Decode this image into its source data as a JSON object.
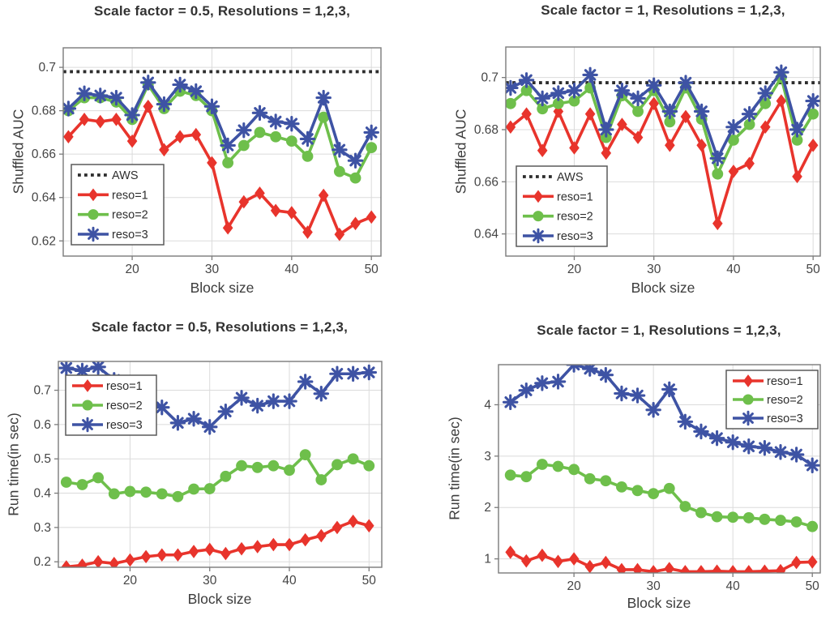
{
  "page": {
    "background": "#ffffff"
  },
  "figure": {
    "rows": 2,
    "cols": 2,
    "accent_colors": {
      "reso1": "#e8342c",
      "reso2": "#6ebf4b",
      "reso3": "#3e53a4",
      "aws": "#2d2d2d"
    },
    "grid_color": "#dbdbdb",
    "spine_color": "#7b7b7b",
    "tick_text_color": "#454545"
  },
  "chart_data": [
    {
      "type": "line",
      "title": "Scale factor = 0.5, Resolutions = 1,2,3,",
      "xlabel": "Block size",
      "ylabel": "Shuffled AUC",
      "x": [
        12,
        14,
        16,
        18,
        20,
        22,
        24,
        26,
        28,
        30,
        32,
        34,
        36,
        38,
        40,
        42,
        44,
        46,
        48,
        50
      ],
      "xlim": [
        11.35,
        51.2
      ],
      "ylim": [
        0.613,
        0.709
      ],
      "xticks": [
        20,
        30,
        40,
        50
      ],
      "yticks": [
        0.62,
        0.64,
        0.66,
        0.68,
        0.7
      ],
      "grid": true,
      "legend_position": "southwest",
      "aws": {
        "label": "AWS",
        "value": 0.698,
        "style": "dotted"
      },
      "series": [
        {
          "name": "reso=1",
          "color": "#e8342c",
          "marker": "diamond",
          "values": [
            0.668,
            0.676,
            0.675,
            0.676,
            0.666,
            0.682,
            0.662,
            0.668,
            0.669,
            0.656,
            0.626,
            0.638,
            0.642,
            0.634,
            0.633,
            0.624,
            0.641,
            0.623,
            0.628,
            0.631
          ]
        },
        {
          "name": "reso=2",
          "color": "#6ebf4b",
          "marker": "circle",
          "values": [
            0.68,
            0.686,
            0.686,
            0.684,
            0.676,
            0.692,
            0.681,
            0.689,
            0.687,
            0.68,
            0.656,
            0.664,
            0.67,
            0.668,
            0.666,
            0.659,
            0.677,
            0.652,
            0.649,
            0.663
          ]
        },
        {
          "name": "reso=3",
          "color": "#3e53a4",
          "marker": "asterisk",
          "values": [
            0.681,
            0.688,
            0.687,
            0.686,
            0.678,
            0.693,
            0.683,
            0.692,
            0.689,
            0.682,
            0.664,
            0.671,
            0.679,
            0.675,
            0.674,
            0.667,
            0.686,
            0.662,
            0.657,
            0.67
          ]
        }
      ]
    },
    {
      "type": "line",
      "title": "Scale factor = 1, Resolutions = 1,2,3,",
      "xlabel": "Block size",
      "ylabel": "Shuffled AUC",
      "x": [
        12,
        14,
        16,
        18,
        20,
        22,
        24,
        26,
        28,
        30,
        32,
        34,
        36,
        38,
        40,
        42,
        44,
        46,
        48,
        50
      ],
      "xlim": [
        11.4,
        50.9
      ],
      "ylim": [
        0.6315,
        0.7117
      ],
      "xticks": [
        20,
        30,
        40,
        50
      ],
      "yticks": [
        0.64,
        0.66,
        0.68,
        0.7
      ],
      "grid": true,
      "legend_position": "southwest",
      "aws": {
        "label": "AWS",
        "value": 0.698,
        "style": "dotted"
      },
      "series": [
        {
          "name": "reso=1",
          "color": "#e8342c",
          "marker": "diamond",
          "values": [
            0.681,
            0.686,
            0.672,
            0.687,
            0.673,
            0.686,
            0.671,
            0.682,
            0.677,
            0.69,
            0.674,
            0.685,
            0.674,
            0.644,
            0.664,
            0.667,
            0.681,
            0.691,
            0.662,
            0.674
          ]
        },
        {
          "name": "reso=2",
          "color": "#6ebf4b",
          "marker": "circle",
          "values": [
            0.69,
            0.695,
            0.688,
            0.69,
            0.691,
            0.696,
            0.677,
            0.693,
            0.687,
            0.695,
            0.683,
            0.696,
            0.684,
            0.663,
            0.676,
            0.682,
            0.69,
            0.7,
            0.676,
            0.686
          ]
        },
        {
          "name": "reso=3",
          "color": "#3e53a4",
          "marker": "asterisk",
          "values": [
            0.696,
            0.699,
            0.692,
            0.694,
            0.695,
            0.701,
            0.68,
            0.695,
            0.692,
            0.697,
            0.687,
            0.698,
            0.687,
            0.669,
            0.681,
            0.686,
            0.694,
            0.702,
            0.68,
            0.691
          ]
        }
      ]
    },
    {
      "type": "line",
      "title": "Scale factor = 0.5, Resolutions = 1,2,3,",
      "xlabel": "Block size",
      "ylabel": "Run time(in sec)",
      "x": [
        12,
        14,
        16,
        18,
        20,
        22,
        24,
        26,
        28,
        30,
        32,
        34,
        36,
        38,
        40,
        42,
        44,
        46,
        48,
        50
      ],
      "xlim": [
        11.0,
        51.6
      ],
      "ylim": [
        0.184,
        0.784
      ],
      "xticks": [
        20,
        30,
        40,
        50
      ],
      "yticks": [
        0.2,
        0.3,
        0.4,
        0.5,
        0.6,
        0.7
      ],
      "grid": true,
      "legend_position": "northwest",
      "series": [
        {
          "name": "reso=1",
          "color": "#e8342c",
          "marker": "diamond",
          "values": [
            0.185,
            0.19,
            0.2,
            0.195,
            0.205,
            0.215,
            0.22,
            0.22,
            0.23,
            0.236,
            0.224,
            0.238,
            0.244,
            0.25,
            0.25,
            0.264,
            0.276,
            0.3,
            0.318,
            0.305
          ]
        },
        {
          "name": "reso=2",
          "color": "#6ebf4b",
          "marker": "circle",
          "values": [
            0.432,
            0.425,
            0.445,
            0.398,
            0.405,
            0.403,
            0.398,
            0.39,
            0.412,
            0.413,
            0.449,
            0.48,
            0.475,
            0.48,
            0.467,
            0.512,
            0.439,
            0.483,
            0.5,
            0.48
          ]
        },
        {
          "name": "reso=3",
          "color": "#3e53a4",
          "marker": "asterisk",
          "values": [
            0.765,
            0.757,
            0.768,
            0.73,
            0.7,
            0.665,
            0.65,
            0.605,
            0.617,
            0.593,
            0.638,
            0.678,
            0.655,
            0.668,
            0.668,
            0.725,
            0.69,
            0.748,
            0.748,
            0.752
          ]
        }
      ]
    },
    {
      "type": "line",
      "title": "Scale factor = 1, Resolutions = 1,2,3,",
      "xlabel": "Block size",
      "ylabel": "Run time(in sec)",
      "x": [
        12,
        14,
        16,
        18,
        20,
        22,
        24,
        26,
        28,
        30,
        32,
        34,
        36,
        38,
        40,
        42,
        44,
        46,
        48,
        50
      ],
      "xlim": [
        10.5,
        51.0
      ],
      "ylim": [
        0.726,
        4.78
      ],
      "xticks": [
        20,
        30,
        40,
        50
      ],
      "yticks": [
        1,
        2,
        3,
        4
      ],
      "grid": true,
      "legend_position": "northeast",
      "series": [
        {
          "name": "reso=1",
          "color": "#e8342c",
          "marker": "diamond",
          "values": [
            1.13,
            0.96,
            1.07,
            0.95,
            1.0,
            0.85,
            0.93,
            0.79,
            0.79,
            0.75,
            0.81,
            0.75,
            0.75,
            0.76,
            0.75,
            0.75,
            0.76,
            0.77,
            0.93,
            0.94
          ]
        },
        {
          "name": "reso=2",
          "color": "#6ebf4b",
          "marker": "circle",
          "values": [
            2.63,
            2.6,
            2.84,
            2.8,
            2.74,
            2.56,
            2.52,
            2.4,
            2.33,
            2.27,
            2.37,
            2.02,
            1.9,
            1.82,
            1.81,
            1.8,
            1.77,
            1.75,
            1.72,
            1.63
          ]
        },
        {
          "name": "reso=3",
          "color": "#3e53a4",
          "marker": "asterisk",
          "values": [
            4.05,
            4.28,
            4.42,
            4.45,
            4.78,
            4.7,
            4.58,
            4.22,
            4.18,
            3.9,
            4.3,
            3.67,
            3.48,
            3.35,
            3.27,
            3.19,
            3.16,
            3.08,
            3.03,
            2.82
          ]
        }
      ]
    }
  ]
}
